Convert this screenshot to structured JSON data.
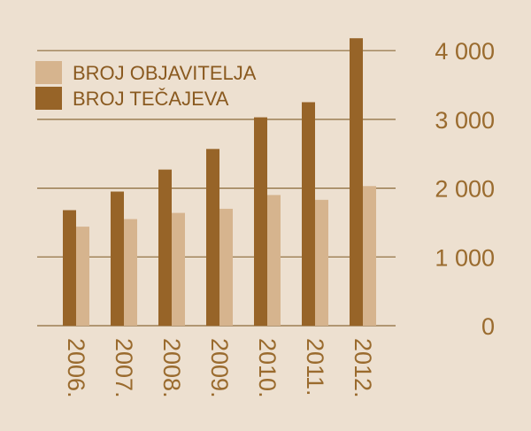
{
  "chart_data": {
    "type": "bar",
    "title": "",
    "xlabel": "",
    "ylabel": "",
    "categories": [
      "2006.",
      "2007.",
      "2008.",
      "2009.",
      "2010.",
      "2011.",
      "2012."
    ],
    "series": [
      {
        "name": "BROJ TEČAJEVA",
        "color": "#976428",
        "values": [
          1680,
          1950,
          2270,
          2570,
          3030,
          3250,
          4180
        ]
      },
      {
        "name": "BROJ OBJAVITELJA",
        "color": "#d6b48e",
        "values": [
          1440,
          1550,
          1640,
          1700,
          1900,
          1830,
          2030
        ]
      }
    ],
    "y_ticks": [
      {
        "value": 0,
        "label": "0"
      },
      {
        "value": 1000,
        "label": "1 000"
      },
      {
        "value": 2000,
        "label": "2 000"
      },
      {
        "value": 3000,
        "label": "3 000"
      },
      {
        "value": 4000,
        "label": "4 000"
      }
    ],
    "ylim": [
      0,
      4250
    ],
    "grid": true,
    "legend_position": "top-left",
    "colors": {
      "background": "#ede0d0",
      "grid": "#8c6a3a",
      "text": "#9a6b2e"
    }
  }
}
